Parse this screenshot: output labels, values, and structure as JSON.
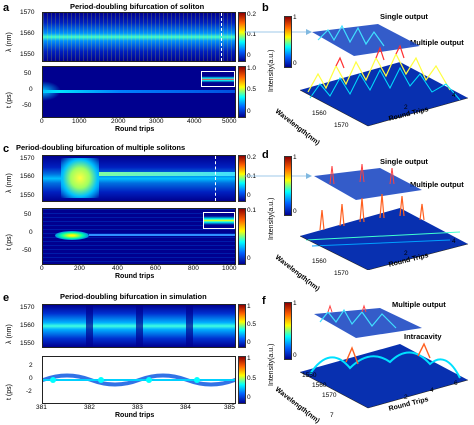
{
  "panels": {
    "a": {
      "label": "a",
      "title": "Period-doubling bifurcation of soliton",
      "top_ylabel": "λ (nm)",
      "top_yticks": [
        "1570",
        "1560",
        "1550"
      ],
      "bottom_ylabel": "t (ps)",
      "bottom_yticks": [
        "50",
        "0",
        "-50"
      ],
      "xticks": [
        "0",
        "1000",
        "2000",
        "3000",
        "4000",
        "5000"
      ],
      "xlabel": "Round trips",
      "top_cbar": [
        "0.2",
        "0.1",
        "0"
      ],
      "bottom_cbar": [
        "1.0",
        "0.5",
        "0"
      ]
    },
    "b": {
      "label": "b",
      "ann1": "Single output",
      "ann2": "Multiple output",
      "zlabel": "Intensity(a.u.)",
      "zticks": [
        "1",
        "0"
      ],
      "ylabel3d": "Wavelength(nm)",
      "yticks3d": [
        "1560",
        "1570"
      ],
      "xticks3d": [
        "2",
        "4"
      ],
      "xlabel3d": "Round Trips"
    },
    "c": {
      "label": "c",
      "title": "Period-doubling bifurcation of multiple solitons",
      "top_ylabel": "λ (nm)",
      "top_yticks": [
        "1570",
        "1560",
        "1550"
      ],
      "bottom_ylabel": "t (ps)",
      "bottom_yticks": [
        "50",
        "0",
        "-50"
      ],
      "xticks": [
        "0",
        "200",
        "400",
        "600",
        "800",
        "1000"
      ],
      "xlabel": "Round trips",
      "top_cbar": [
        "0.2",
        "0.1",
        "0"
      ],
      "bottom_cbar": [
        "0.1",
        "0"
      ]
    },
    "d": {
      "label": "d",
      "ann1": "Single output",
      "ann2": "Multiple output",
      "zlabel": "Intensity(a.u.)",
      "zticks": [
        "1",
        "0"
      ],
      "ylabel3d": "Wavelength(nm)",
      "yticks3d": [
        "1560",
        "1570"
      ],
      "xticks3d": [
        "2",
        "4"
      ],
      "xlabel3d": "Round Trips"
    },
    "e": {
      "label": "e",
      "title": "Period-doubling bifurcation in simulation",
      "top_ylabel": "λ (nm)",
      "top_yticks": [
        "1570",
        "1560",
        "1550"
      ],
      "bottom_ylabel": "t (ps)",
      "bottom_yticks": [
        "2",
        "0",
        "-2"
      ],
      "xticks": [
        "381",
        "382",
        "383",
        "384",
        "385"
      ],
      "xlabel": "Round trips",
      "top_cbar": [
        "1",
        "0.5",
        "0"
      ],
      "bottom_cbar": [
        "1",
        "0.5",
        "0"
      ]
    },
    "f": {
      "label": "f",
      "ann1": "Multiple output",
      "ann2": "Intracavity",
      "zlabel": "Intensity(a.u.)",
      "zticks": [
        "1",
        "0"
      ],
      "ylabel3d": "Wavelength(nm)",
      "yticks3d": [
        "1550",
        "1560",
        "1570"
      ],
      "xticks3d": [
        "2",
        "4",
        "6"
      ],
      "xlabel3d": "Round Trips",
      "xticks3d_extra": [
        "7"
      ]
    }
  },
  "colors": {
    "jet_low": "#00008f",
    "jet_mid": "#00ffff",
    "jet_high": "#8f0000"
  }
}
